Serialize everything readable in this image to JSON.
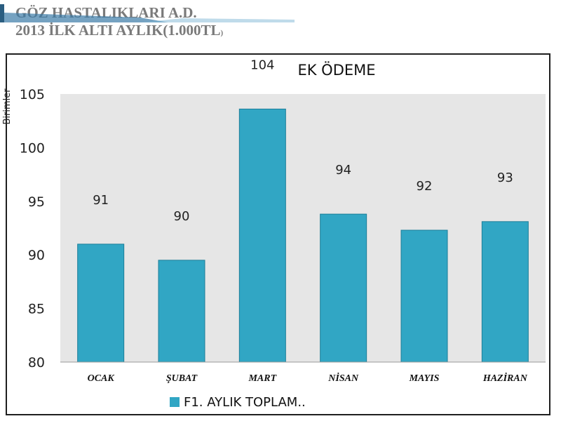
{
  "slide": {
    "title_line1": "GÖZ HASTALIKLARI A.D.",
    "title_line2_main": "2013 İLK ALTI AYLIK(1.000TL",
    "title_line2_small": ")"
  },
  "chart_data": {
    "type": "bar",
    "title": "EK ÖDEME",
    "ylabel": "Birimler",
    "ylim": [
      80,
      105
    ],
    "yticks": [
      "80",
      "85",
      "90",
      "95",
      "100",
      "105"
    ],
    "categories": [
      "OCAK",
      "ŞUBAT",
      "MART",
      "NİSAN",
      "MAYIS",
      "HAZİRAN"
    ],
    "series": [
      {
        "name": "F1. AYLIK TOPLAM..",
        "values": [
          91,
          89.5,
          103.6,
          93.8,
          92.3,
          93.1
        ],
        "labels": [
          "91",
          "90",
          "104",
          "94",
          "92",
          "93"
        ]
      }
    ],
    "colors": {
      "bar": "#31a6c4",
      "bar_edge": "#1d7f99",
      "plot_bg": "#e6e6e6"
    },
    "grid": false,
    "legend": "bottom-left"
  }
}
